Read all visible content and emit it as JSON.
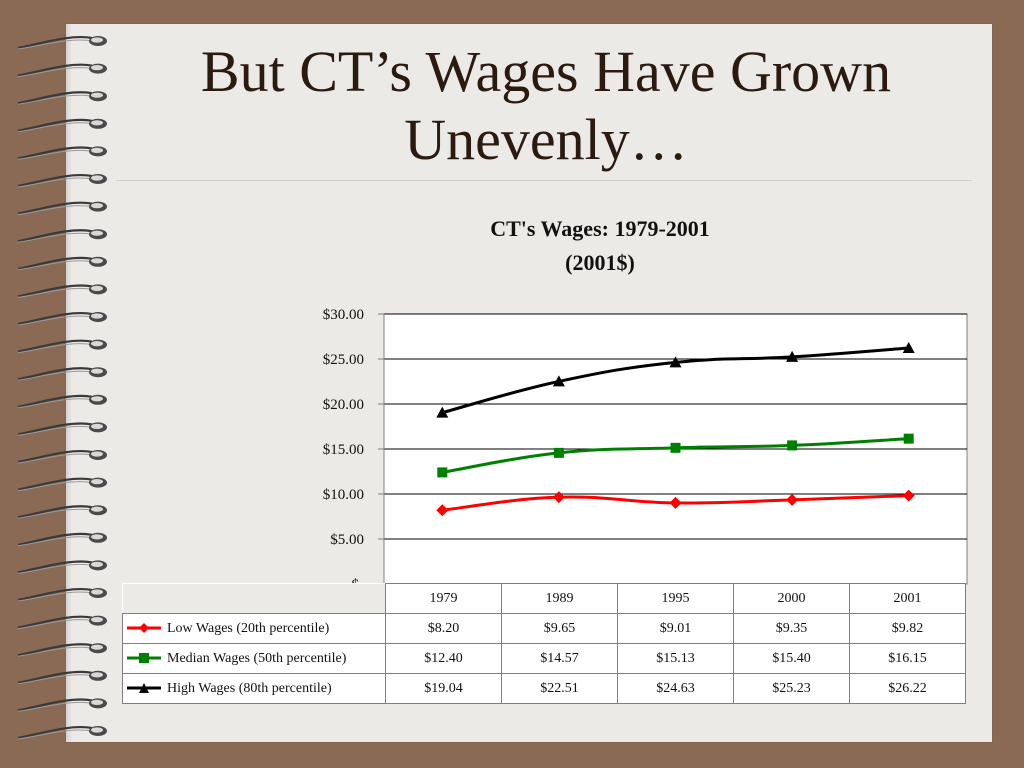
{
  "slide": {
    "title_line1": "But CT’s Wages Have Grown",
    "title_line2": "Unevenly…"
  },
  "colors": {
    "low": "#ff0000",
    "median": "#008000",
    "high": "#000000",
    "page": "#eceae6",
    "frame": "#8b6a55"
  },
  "chart_data": {
    "type": "line",
    "title_line1": "CT's Wages: 1979-2001",
    "title_line2": "(2001$)",
    "categories": [
      "1979",
      "1989",
      "1995",
      "2000",
      "2001"
    ],
    "ylim": [
      0,
      30
    ],
    "yticks": [
      "$-",
      "$5.00",
      "$10.00",
      "$15.00",
      "$20.00",
      "$25.00",
      "$30.00"
    ],
    "grid": true,
    "legend": "data-table",
    "series": [
      {
        "name": "Low Wages (20th percentile)",
        "color": "#ff0000",
        "marker": "diamond",
        "values": [
          8.2,
          9.65,
          9.01,
          9.35,
          9.82
        ],
        "labels": [
          "$8.20",
          "$9.65",
          "$9.01",
          "$9.35",
          "$9.82"
        ]
      },
      {
        "name": "Median Wages (50th percentile)",
        "color": "#008000",
        "marker": "square",
        "values": [
          12.4,
          14.57,
          15.13,
          15.4,
          16.15
        ],
        "labels": [
          "$12.40",
          "$14.57",
          "$15.13",
          "$15.40",
          "$16.15"
        ]
      },
      {
        "name": "High Wages (80th percentile)",
        "color": "#000000",
        "marker": "triangle",
        "values": [
          19.04,
          22.51,
          24.63,
          25.23,
          26.22
        ],
        "labels": [
          "$19.04",
          "$22.51",
          "$24.63",
          "$25.23",
          "$26.22"
        ]
      }
    ]
  }
}
